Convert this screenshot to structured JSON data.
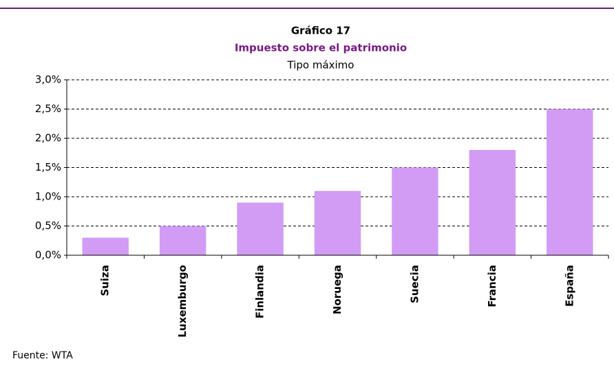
{
  "chart_data": {
    "type": "bar",
    "title": "Gráfico 17",
    "subtitle": "Impuesto sobre el patrimonio",
    "caption": "Tipo máximo",
    "source": "Fuente: WTA",
    "categories": [
      "Suiza",
      "Luxemburgo",
      "Finlandia",
      "Noruega",
      "Suecia",
      "Francia",
      "España"
    ],
    "values": [
      0.3,
      0.5,
      0.9,
      1.1,
      1.5,
      1.8,
      2.5
    ],
    "color": "#d29cf5",
    "ylim": [
      0,
      3
    ],
    "yticks": [
      {
        "value": 0,
        "label": "0,0%"
      },
      {
        "value": 0.5,
        "label": "0,5%"
      },
      {
        "value": 1,
        "label": "1,0%"
      },
      {
        "value": 1.5,
        "label": "1,5%"
      },
      {
        "value": 2,
        "label": "2,0%"
      },
      {
        "value": 2.5,
        "label": "2,5%"
      },
      {
        "value": 3,
        "label": "3,0%"
      }
    ],
    "grid": true
  }
}
